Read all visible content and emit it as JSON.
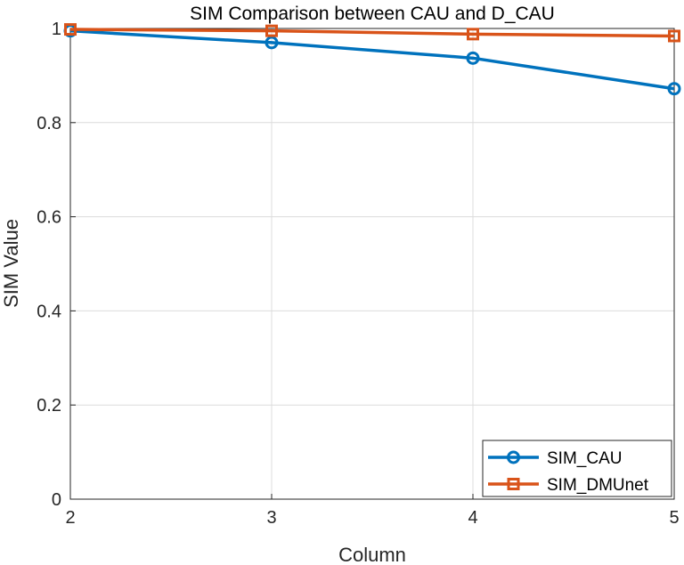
{
  "chart_data": {
    "type": "line",
    "title": "SIM Comparison between CAU and D_CAU",
    "xlabel": "Column",
    "ylabel": "SIM Value",
    "x": [
      2,
      3,
      4,
      5
    ],
    "xlim": [
      2,
      5
    ],
    "ylim": [
      0,
      1
    ],
    "xticks": [
      "2",
      "3",
      "4",
      "5"
    ],
    "yticks": [
      "0",
      "0.2",
      "0.4",
      "0.6",
      "0.8",
      "1"
    ],
    "grid": true,
    "legend_position": "bottom-right",
    "series": [
      {
        "name": "SIM_CAU",
        "values": [
          0.995,
          0.97,
          0.937,
          0.872
        ],
        "color": "#0072BD",
        "marker": "circle"
      },
      {
        "name": "SIM_DMUnet",
        "values": [
          0.998,
          0.995,
          0.988,
          0.984
        ],
        "color": "#D95319",
        "marker": "square"
      }
    ]
  }
}
